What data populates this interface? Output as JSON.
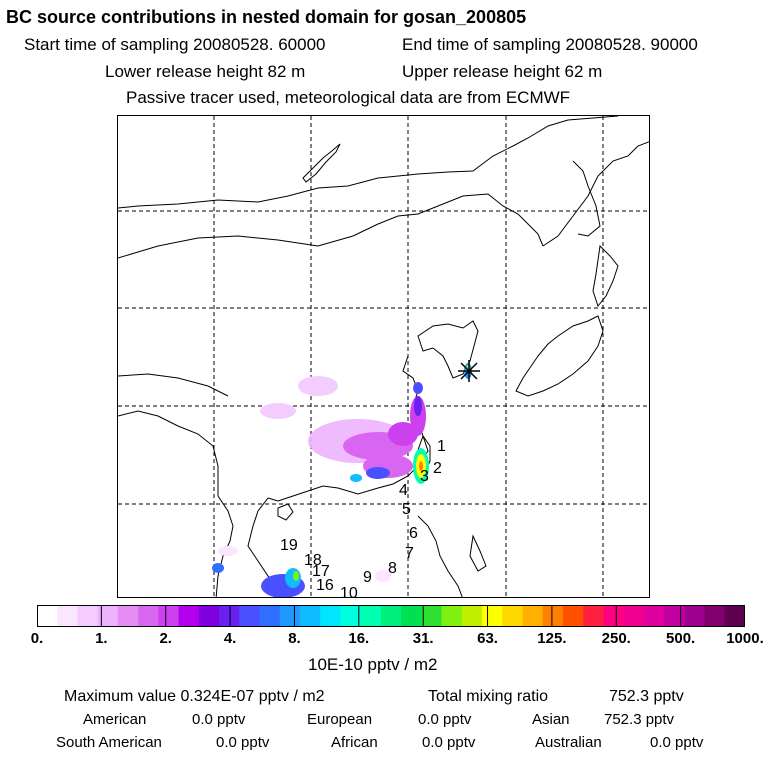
{
  "header": {
    "title": "BC  source contributions in nested domain for gosan_200805",
    "start_label": "Start time of sampling 20080528. 60000",
    "end_label": "End time of sampling 20080528. 90000",
    "lower_label": "Lower release height   82 m",
    "upper_label": "Upper release height   62 m",
    "note": "Passive tracer used, meteorological data are from ECMWF"
  },
  "map": {
    "point_labels": [
      "1",
      "2",
      "3",
      "4",
      "5",
      "6",
      "7",
      "8",
      "9",
      "10",
      "16",
      "17",
      "18",
      "19"
    ],
    "receptor_marker": "star-icon"
  },
  "colorbar": {
    "ticks": [
      "0.",
      "1.",
      "2.",
      "4.",
      "8.",
      "16.",
      "31.",
      "63.",
      "125.",
      "250.",
      "500.",
      "1000."
    ],
    "unit": "10E-10 pptv / m2",
    "colors": [
      "#ffffff",
      "#fbe6ff",
      "#f5ccff",
      "#eeb3ff",
      "#e58cf5",
      "#d966f0",
      "#cc40ef",
      "#b200ee",
      "#8000e0",
      "#6a20f0",
      "#4a50ff",
      "#2f6fff",
      "#2099ff",
      "#10bbff",
      "#00e6ff",
      "#00ffe0",
      "#00ffb0",
      "#00f080",
      "#00e050",
      "#30e030",
      "#80f010",
      "#c0f000",
      "#ffff00",
      "#ffd800",
      "#ffb000",
      "#ff8000",
      "#ff5000",
      "#ff2040",
      "#ff0080",
      "#f00090",
      "#e000a0",
      "#c000a0",
      "#a00090",
      "#800070",
      "#600050"
    ]
  },
  "stats": {
    "max_label": "Maximum value  0.324E-07 pptv / m2",
    "total_label": "Total mixing ratio",
    "total_value": "752.3 pptv",
    "regions": [
      {
        "name": "American",
        "value": "0.0 pptv"
      },
      {
        "name": "European",
        "value": "0.0 pptv"
      },
      {
        "name": "Asian",
        "value": "752.3 pptv"
      },
      {
        "name": "South American",
        "value": "0.0 pptv"
      },
      {
        "name": "African",
        "value": "0.0 pptv"
      },
      {
        "name": "Australian",
        "value": "0.0 pptv"
      }
    ]
  }
}
